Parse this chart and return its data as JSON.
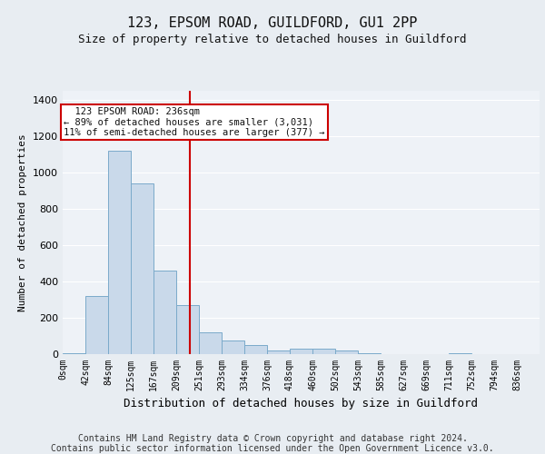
{
  "title": "123, EPSOM ROAD, GUILDFORD, GU1 2PP",
  "subtitle": "Size of property relative to detached houses in Guildford",
  "xlabel": "Distribution of detached houses by size in Guildford",
  "ylabel": "Number of detached properties",
  "footnote1": "Contains HM Land Registry data © Crown copyright and database right 2024.",
  "footnote2": "Contains public sector information licensed under the Open Government Licence v3.0.",
  "bin_labels": [
    "0sqm",
    "42sqm",
    "84sqm",
    "125sqm",
    "167sqm",
    "209sqm",
    "251sqm",
    "293sqm",
    "334sqm",
    "376sqm",
    "418sqm",
    "460sqm",
    "502sqm",
    "543sqm",
    "585sqm",
    "627sqm",
    "669sqm",
    "711sqm",
    "752sqm",
    "794sqm",
    "836sqm"
  ],
  "bar_heights": [
    5,
    320,
    1120,
    940,
    460,
    270,
    120,
    75,
    50,
    20,
    30,
    30,
    20,
    5,
    0,
    0,
    0,
    5,
    0,
    0,
    0
  ],
  "bar_color": "#c9d9ea",
  "bar_edge_color": "#7aaaca",
  "bin_width": 42,
  "property_size_sqm": 236,
  "annotation_text_line1": "  123 EPSOM ROAD: 236sqm",
  "annotation_text_line2": "← 89% of detached houses are smaller (3,031)",
  "annotation_text_line3": "11% of semi-detached houses are larger (377) →",
  "annotation_box_color": "#cc0000",
  "vertical_line_color": "#cc0000",
  "ylim": [
    0,
    1450
  ],
  "yticks": [
    0,
    200,
    400,
    600,
    800,
    1000,
    1200,
    1400
  ],
  "background_color": "#e8edf2",
  "plot_background": "#eef2f7",
  "grid_color": "#ffffff",
  "title_fontsize": 11,
  "subtitle_fontsize": 9,
  "ylabel_fontsize": 8,
  "xlabel_fontsize": 9,
  "ytick_fontsize": 8,
  "xtick_fontsize": 7,
  "footnote_fontsize": 7
}
